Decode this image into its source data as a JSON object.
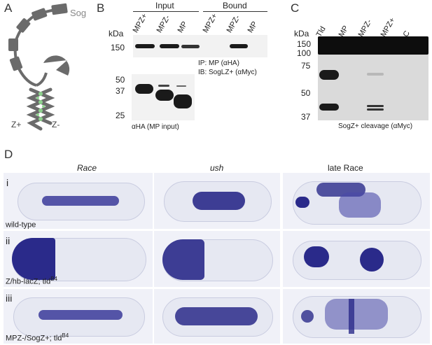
{
  "panel_letters": {
    "a": "A",
    "b": "B",
    "c": "C",
    "d": "D"
  },
  "panel_a": {
    "sog_label": "Sog",
    "zplus_label": "Z+",
    "zminus_label": "Z-"
  },
  "panel_b": {
    "group_input": "Input",
    "group_bound": "Bound",
    "lanes": [
      "MPZ+",
      "MPZ-",
      "MP",
      "MPZ+",
      "MPZ-",
      "MP"
    ],
    "kda_label": "kDa",
    "marker_top": "150",
    "ip_label": "IP: MP (αHA)",
    "ib_label": "IB: SogLZ+ (αMyc)",
    "lower_markers": [
      "50",
      "37",
      "25"
    ],
    "lower_caption": "αHA (MP input)"
  },
  "panel_c": {
    "kda_label": "kDa",
    "lanes": [
      "Tld",
      "MP",
      "MPZ-",
      "MPZ+",
      "C"
    ],
    "markers": [
      "150",
      "100",
      "75",
      "50",
      "37"
    ],
    "caption": "SogZ+ cleavage (αMyc)"
  },
  "panel_d": {
    "columns": [
      "Race",
      "ush",
      "late Race"
    ],
    "rows": [
      {
        "numeral": "i",
        "label": "wild-type",
        "label_sup": ""
      },
      {
        "numeral": "ii",
        "label": "Z/hb-lacZ; tld",
        "label_sup": "B4"
      },
      {
        "numeral": "iii",
        "label": "MPZ-/SogZ+; tld",
        "label_sup": "B4"
      }
    ]
  },
  "colors": {
    "stain": "#2a2a8a",
    "embryo_bg": "#eef0f8",
    "blot_dark": "#111111",
    "diagram_gray": "#6b6b6b",
    "zipper_green": "#8ed18e"
  }
}
